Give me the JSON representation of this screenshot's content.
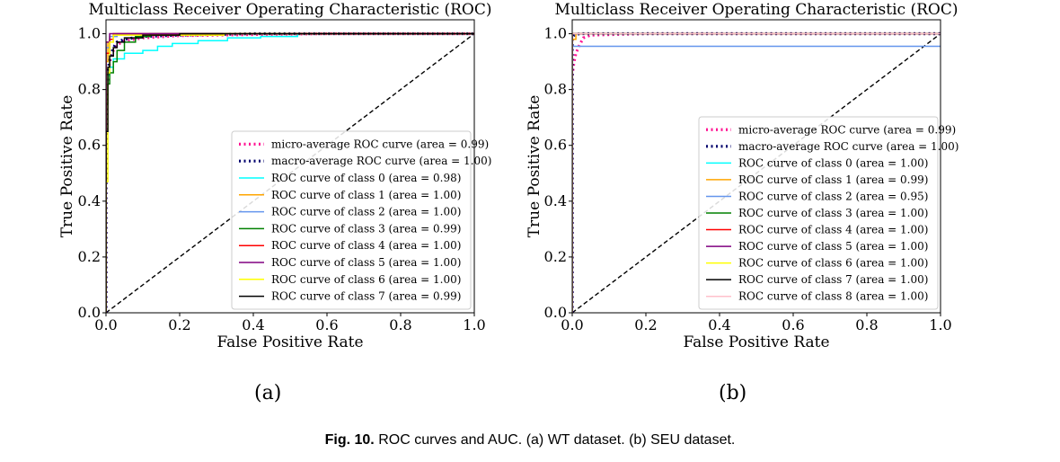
{
  "figure": {
    "caption_label": "Fig. 10.",
    "caption_text": "ROC curves and AUC. (a) WT dataset. (b) SEU dataset."
  },
  "chart_data": [
    {
      "id": "a",
      "sublabel": "(a)",
      "type": "line",
      "title": "Multiclass Receiver Operating Characteristic (ROC)",
      "xlabel": "False Positive Rate",
      "ylabel": "True Positive Rate",
      "xlim": [
        0,
        1
      ],
      "ylim": [
        0,
        1.05
      ],
      "xticks": [
        0.0,
        0.2,
        0.4,
        0.6,
        0.8,
        1.0
      ],
      "yticks": [
        0.0,
        0.2,
        0.4,
        0.6,
        0.8,
        1.0
      ],
      "xtick_labels": [
        "0.0",
        "0.2",
        "0.4",
        "0.6",
        "0.8",
        "1.0"
      ],
      "ytick_labels": [
        "0.0",
        "0.2",
        "0.4",
        "0.6",
        "0.8",
        "1.0"
      ],
      "legend_position": "lower-right",
      "series": [
        {
          "name": "micro-average ROC curve (area = 0.99)",
          "color": "#ff1493",
          "style": "dotted-thick",
          "x": [
            0,
            0.0,
            0.005,
            0.01,
            0.02,
            0.03,
            0.05,
            0.1,
            0.2,
            0.4,
            0.6,
            1.0
          ],
          "y": [
            0,
            0.7,
            0.85,
            0.9,
            0.94,
            0.96,
            0.975,
            0.985,
            0.993,
            0.997,
            1.0,
            1.0
          ]
        },
        {
          "name": "macro-average ROC curve (area = 1.00)",
          "color": "#00006e",
          "style": "dotted-thick",
          "x": [
            0,
            0.0,
            0.005,
            0.01,
            0.02,
            0.03,
            0.05,
            0.1,
            0.2,
            0.4,
            1.0
          ],
          "y": [
            0,
            0.72,
            0.86,
            0.91,
            0.95,
            0.97,
            0.98,
            0.99,
            0.995,
            1.0,
            1.0
          ]
        },
        {
          "name": "ROC curve of class 0 (area = 0.98)",
          "color": "#00ffff",
          "style": "solid",
          "x": [
            0,
            0.0,
            0.005,
            0.005,
            0.01,
            0.01,
            0.02,
            0.02,
            0.05,
            0.05,
            0.1,
            0.1,
            0.14,
            0.14,
            0.18,
            0.18,
            0.25,
            0.25,
            0.33,
            0.33,
            0.42,
            0.42,
            0.52,
            0.52,
            1.0
          ],
          "y": [
            0,
            0.8,
            0.8,
            0.85,
            0.85,
            0.88,
            0.88,
            0.91,
            0.91,
            0.93,
            0.93,
            0.94,
            0.94,
            0.955,
            0.955,
            0.965,
            0.965,
            0.975,
            0.975,
            0.985,
            0.985,
            0.99,
            0.99,
            1.0,
            1.0
          ]
        },
        {
          "name": "ROC curve of class 1 (area = 1.00)",
          "color": "#ffa500",
          "style": "solid",
          "x": [
            0,
            0.0,
            0.005,
            0.005,
            0.01,
            0.01,
            0.02,
            0.02,
            1.0
          ],
          "y": [
            0,
            0.9,
            0.9,
            0.97,
            0.97,
            0.99,
            0.99,
            1.0,
            1.0
          ]
        },
        {
          "name": "ROC curve of class 2 (area = 1.00)",
          "color": "#6495ed",
          "style": "solid",
          "x": [
            0,
            0.0,
            0.01,
            0.01,
            0.03,
            0.03,
            1.0
          ],
          "y": [
            0,
            0.95,
            0.95,
            0.99,
            0.99,
            1.0,
            1.0
          ]
        },
        {
          "name": "ROC curve of class 3 (area = 0.99)",
          "color": "#008000",
          "style": "solid",
          "x": [
            0,
            0.0,
            0.005,
            0.005,
            0.01,
            0.01,
            0.02,
            0.02,
            0.03,
            0.03,
            0.05,
            0.05,
            0.08,
            0.08,
            0.12,
            0.12,
            1.0
          ],
          "y": [
            0,
            0.75,
            0.75,
            0.82,
            0.82,
            0.86,
            0.86,
            0.9,
            0.9,
            0.94,
            0.94,
            0.97,
            0.97,
            0.99,
            0.99,
            1.0,
            1.0
          ]
        },
        {
          "name": "ROC curve of class 4 (area = 1.00)",
          "color": "#ff0000",
          "style": "solid",
          "x": [
            0,
            0.0,
            0.01,
            0.01,
            0.02,
            0.02,
            1.0
          ],
          "y": [
            0,
            0.93,
            0.93,
            0.98,
            0.98,
            1.0,
            1.0
          ]
        },
        {
          "name": "ROC curve of class 5 (area = 1.00)",
          "color": "#800080",
          "style": "solid",
          "x": [
            0,
            0.0,
            0.01,
            0.01,
            1.0
          ],
          "y": [
            0,
            0.97,
            0.97,
            1.0,
            1.0
          ]
        },
        {
          "name": "ROC curve of class 6 (area = 1.00)",
          "color": "#ffff00",
          "style": "solid",
          "x": [
            0,
            0.0,
            0.005,
            0.005,
            0.01,
            0.01,
            0.02,
            0.02,
            0.32,
            0.32,
            1.0
          ],
          "y": [
            0,
            0.47,
            0.47,
            0.86,
            0.86,
            0.97,
            0.97,
            0.995,
            0.995,
            1.0,
            1.0
          ]
        },
        {
          "name": "ROC curve of class 7 (area = 0.99)",
          "color": "#000000",
          "style": "solid",
          "x": [
            0,
            0.0,
            0.005,
            0.005,
            0.01,
            0.01,
            0.02,
            0.02,
            0.03,
            0.03,
            0.05,
            0.05,
            0.1,
            0.1,
            0.2,
            0.2,
            1.0
          ],
          "y": [
            0,
            0.65,
            0.65,
            0.88,
            0.88,
            0.92,
            0.92,
            0.95,
            0.95,
            0.97,
            0.97,
            0.985,
            0.985,
            0.995,
            0.995,
            1.0,
            1.0
          ]
        }
      ]
    },
    {
      "id": "b",
      "sublabel": "(b)",
      "type": "line",
      "title": "Multiclass Receiver Operating Characteristic (ROC)",
      "xlabel": "False Positive Rate",
      "ylabel": "True Positive Rate",
      "xlim": [
        0,
        1
      ],
      "ylim": [
        0,
        1.05
      ],
      "xticks": [
        0.0,
        0.2,
        0.4,
        0.6,
        0.8,
        1.0
      ],
      "yticks": [
        0.0,
        0.2,
        0.4,
        0.6,
        0.8,
        1.0
      ],
      "xtick_labels": [
        "0.0",
        "0.2",
        "0.4",
        "0.6",
        "0.8",
        "1.0"
      ],
      "ytick_labels": [
        "0.0",
        "0.2",
        "0.4",
        "0.6",
        "0.8",
        "1.0"
      ],
      "legend_position": "center-right",
      "series": [
        {
          "name": "micro-average ROC curve (area = 0.99)",
          "color": "#ff1493",
          "style": "dotted-thick",
          "x": [
            0,
            0.0,
            0.005,
            0.01,
            0.02,
            0.03,
            0.05,
            0.2,
            1.0
          ],
          "y": [
            0,
            0.85,
            0.9,
            0.93,
            0.96,
            0.985,
            0.995,
            1.0,
            1.0
          ]
        },
        {
          "name": "macro-average ROC curve (area = 1.00)",
          "color": "#00006e",
          "style": "dotted-thick",
          "x": [
            0,
            0.0,
            0.005,
            0.02,
            1.0
          ],
          "y": [
            0,
            0.98,
            0.995,
            1.0,
            1.0
          ]
        },
        {
          "name": "ROC curve of class 0 (area = 1.00)",
          "color": "#00ffff",
          "style": "solid",
          "x": [
            0,
            0.0,
            1.0
          ],
          "y": [
            0,
            1.0,
            1.0
          ]
        },
        {
          "name": "ROC curve of class 1 (area = 0.99)",
          "color": "#ffa500",
          "style": "solid",
          "x": [
            0,
            0.0,
            0.01,
            0.01,
            1.0
          ],
          "y": [
            0,
            0.98,
            0.98,
            1.0,
            1.0
          ]
        },
        {
          "name": "ROC curve of class 2 (area = 0.95)",
          "color": "#6495ed",
          "style": "solid",
          "x": [
            0,
            0.0,
            1.0
          ],
          "y": [
            0,
            0.955,
            0.955
          ]
        },
        {
          "name": "ROC curve of class 3 (area = 1.00)",
          "color": "#008000",
          "style": "solid",
          "x": [
            0,
            0.0,
            1.0
          ],
          "y": [
            0,
            1.0,
            1.0
          ]
        },
        {
          "name": "ROC curve of class 4 (area = 1.00)",
          "color": "#ff0000",
          "style": "solid",
          "x": [
            0,
            0.0,
            1.0
          ],
          "y": [
            0,
            1.0,
            1.0
          ]
        },
        {
          "name": "ROC curve of class 5 (area = 1.00)",
          "color": "#800080",
          "style": "solid",
          "x": [
            0,
            0.0,
            1.0
          ],
          "y": [
            0,
            1.0,
            1.0
          ]
        },
        {
          "name": "ROC curve of class 6 (area = 1.00)",
          "color": "#ffff00",
          "style": "solid",
          "x": [
            0,
            0.0,
            1.0
          ],
          "y": [
            0,
            1.0,
            1.0
          ]
        },
        {
          "name": "ROC curve of class 7 (area = 1.00)",
          "color": "#000000",
          "style": "solid",
          "x": [
            0,
            0.0,
            1.0
          ],
          "y": [
            0,
            1.0,
            1.0
          ]
        },
        {
          "name": "ROC curve of class 8 (area = 1.00)",
          "color": "#ffc0cb",
          "style": "solid",
          "x": [
            0,
            0.0,
            1.0
          ],
          "y": [
            0,
            1.0,
            1.0
          ]
        }
      ]
    }
  ]
}
